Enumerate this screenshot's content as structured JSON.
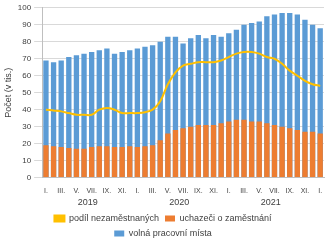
{
  "chart_data": {
    "type": "bar",
    "y_label": "Počet (v tis.)",
    "categories": [
      "I.",
      null,
      "III.",
      null,
      "V.",
      null,
      "VII.",
      null,
      "IX.",
      null,
      "XI.",
      null,
      "I.",
      null,
      "III.",
      null,
      "V.",
      null,
      "VII.",
      null,
      "IX.",
      null,
      "XI.",
      null,
      "I.",
      null,
      "III.",
      null,
      "V.",
      null,
      "VII.",
      null,
      "IX.",
      null,
      "XI.",
      null,
      "I."
    ],
    "year_labels": [
      "2019",
      "2020",
      "2021"
    ],
    "ylim": [
      0,
      100
    ],
    "yticks": [
      0,
      10,
      20,
      30,
      40,
      50,
      60,
      70,
      80,
      90,
      100
    ],
    "grid": true,
    "legend": "bottom",
    "series": [
      {
        "name": "volná pracovní místa",
        "type": "bar",
        "color": "#5b9bd5",
        "values": [
          69,
          68,
          69,
          71,
          72,
          73,
          74,
          75,
          76,
          73,
          74,
          75,
          76,
          77,
          78,
          80,
          83,
          83,
          79,
          82,
          84,
          82,
          84,
          83,
          85,
          87,
          90,
          91,
          92,
          95,
          96,
          97,
          97,
          96,
          93,
          90,
          88
        ]
      },
      {
        "name": "uchazeči o zaměstnání",
        "type": "bar",
        "color": "#ed7d31",
        "values": [
          19,
          18.5,
          18,
          17.5,
          17,
          17,
          18,
          18.5,
          18.5,
          18,
          18,
          18.5,
          18,
          18.5,
          19,
          22,
          26,
          28,
          29,
          30,
          31,
          31,
          31,
          32,
          33,
          34,
          34,
          33,
          33,
          32,
          31,
          30,
          29,
          28,
          27,
          27,
          26
        ]
      },
      {
        "name": "podíl nezaměstnaných",
        "type": "line",
        "color": "#ffc000",
        "values": [
          40,
          39.5,
          39,
          38,
          37,
          37,
          37,
          40,
          41,
          40,
          38,
          38,
          38,
          38.5,
          40,
          45,
          55,
          62,
          66,
          67,
          68,
          68,
          68,
          69,
          71,
          73,
          74,
          74,
          73,
          71,
          70,
          67,
          63,
          60,
          57,
          55,
          54
        ]
      }
    ]
  }
}
